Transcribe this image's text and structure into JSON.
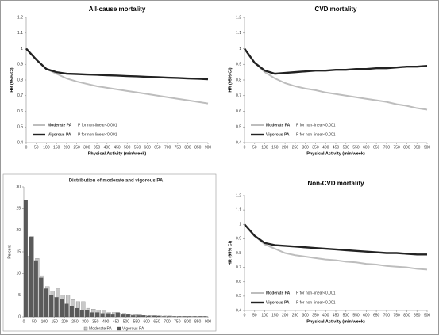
{
  "chart_data": [
    {
      "type": "line",
      "title": "All-cause mortality",
      "ylabel": "HR (95% CI)",
      "xlabel": "Physical Activity (min/week)",
      "x": [
        0,
        50,
        100,
        150,
        200,
        250,
        300,
        350,
        400,
        450,
        500,
        550,
        600,
        650,
        700,
        750,
        800,
        850,
        900
      ],
      "series": [
        {
          "name": "Moderate PA",
          "color": "#bdbdbd",
          "values": [
            1.0,
            0.93,
            0.87,
            0.84,
            0.81,
            0.79,
            0.775,
            0.76,
            0.75,
            0.74,
            0.73,
            0.72,
            0.71,
            0.7,
            0.69,
            0.68,
            0.67,
            0.66,
            0.65
          ]
        },
        {
          "name": "Vigorous PA",
          "color": "#222222",
          "values": [
            1.0,
            0.93,
            0.87,
            0.85,
            0.84,
            0.838,
            0.835,
            0.833,
            0.83,
            0.828,
            0.825,
            0.823,
            0.82,
            0.818,
            0.815,
            0.813,
            0.81,
            0.808,
            0.805
          ]
        }
      ],
      "annotations": [
        "P for non-linear<0.001",
        "P for non-linear<0.001"
      ],
      "xlim": [
        0,
        900
      ],
      "xticks": [
        0,
        50,
        100,
        150,
        200,
        250,
        300,
        350,
        400,
        450,
        500,
        550,
        600,
        650,
        700,
        750,
        800,
        850,
        900
      ],
      "ylim": [
        0.4,
        1.2
      ],
      "yticks": [
        0.4,
        0.5,
        0.6,
        0.7,
        0.8,
        0.9,
        1,
        1.1,
        1.2
      ],
      "legend": "lower left"
    },
    {
      "type": "line",
      "title": "CVD mortality",
      "ylabel": "HR (95% CI)",
      "xlabel": "Physical Activity (min/week)",
      "x": [
        0,
        50,
        100,
        150,
        200,
        250,
        300,
        350,
        400,
        450,
        500,
        550,
        600,
        650,
        700,
        750,
        800,
        850,
        900
      ],
      "series": [
        {
          "name": "Moderate PA",
          "color": "#bdbdbd",
          "values": [
            1.0,
            0.91,
            0.85,
            0.81,
            0.78,
            0.76,
            0.745,
            0.735,
            0.72,
            0.71,
            0.7,
            0.69,
            0.68,
            0.67,
            0.66,
            0.645,
            0.635,
            0.62,
            0.61
          ]
        },
        {
          "name": "Vigorous PA",
          "color": "#222222",
          "values": [
            1.0,
            0.91,
            0.86,
            0.84,
            0.845,
            0.85,
            0.855,
            0.86,
            0.86,
            0.865,
            0.865,
            0.87,
            0.87,
            0.875,
            0.875,
            0.88,
            0.885,
            0.885,
            0.89
          ]
        }
      ],
      "annotations": [
        "P for non-linear<0.001",
        "P for non-linear<0.001"
      ],
      "xlim": [
        0,
        900
      ],
      "xticks": [
        0,
        50,
        100,
        150,
        200,
        250,
        300,
        350,
        400,
        450,
        500,
        550,
        600,
        650,
        700,
        750,
        800,
        850,
        900
      ],
      "ylim": [
        0.4,
        1.2
      ],
      "yticks": [
        0.4,
        0.5,
        0.6,
        0.7,
        0.8,
        0.9,
        1,
        1.1,
        1.2
      ],
      "legend": "lower left"
    },
    {
      "type": "histogram",
      "title": "Distribution of moderate and vigorous PA",
      "ylabel": "Percent",
      "bins": [
        0,
        25,
        50,
        75,
        100,
        125,
        150,
        175,
        200,
        225,
        250,
        275,
        300,
        325,
        350,
        375,
        400,
        425,
        450,
        475,
        500,
        525,
        550,
        575,
        600,
        625,
        650,
        675,
        700,
        725,
        750,
        775,
        800,
        825,
        850,
        875,
        900
      ],
      "series": [
        {
          "name": "Moderate PA",
          "color": "#c8c8c8",
          "values": [
            14,
            18.5,
            13.5,
            9.5,
            7,
            6,
            6.5,
            5,
            5,
            4,
            3.5,
            3.5,
            2,
            1.8,
            1.5,
            1.5,
            1,
            1,
            0.8,
            0.8,
            0.5,
            0.5,
            0.5,
            0.3,
            0.3,
            0.3,
            0.2,
            0.2,
            0.2,
            0.1,
            0.1,
            0.1,
            0.1,
            0.1,
            0.1,
            0.1
          ]
        },
        {
          "name": "Vigorous PA",
          "color": "#5a5a5a",
          "values": [
            27,
            18.5,
            13,
            9,
            6.5,
            5,
            4.5,
            4,
            3,
            2.5,
            2,
            1.5,
            1.5,
            1,
            1,
            0.8,
            0.8,
            0.5,
            1,
            0.5,
            0.5,
            0.3,
            0.3,
            0.3,
            0.2,
            0.2,
            0.2,
            0.1,
            0.1,
            0.1,
            0.1,
            0.1,
            0.1,
            0.1,
            0.1,
            0.1
          ]
        }
      ],
      "xlim": [
        0,
        900
      ],
      "xticks": [
        0,
        50,
        100,
        150,
        200,
        250,
        300,
        350,
        400,
        450,
        500,
        550,
        600,
        650,
        700,
        750,
        800,
        850,
        900
      ],
      "ylim": [
        0,
        30
      ],
      "yticks": [
        0,
        5,
        10,
        15,
        20,
        25,
        30
      ],
      "legend": "bottom"
    },
    {
      "type": "line",
      "title": "Non-CVD mortality",
      "ylabel": "HR (95% CI)",
      "xlabel": "Physical Activity (min/week)",
      "x": [
        0,
        50,
        100,
        150,
        200,
        250,
        300,
        350,
        400,
        450,
        500,
        550,
        600,
        650,
        700,
        750,
        800,
        850,
        900
      ],
      "series": [
        {
          "name": "Moderate PA",
          "color": "#bdbdbd",
          "values": [
            1.0,
            0.92,
            0.86,
            0.83,
            0.8,
            0.785,
            0.775,
            0.765,
            0.755,
            0.75,
            0.74,
            0.735,
            0.725,
            0.72,
            0.71,
            0.705,
            0.7,
            0.69,
            0.685
          ]
        },
        {
          "name": "Vigorous PA",
          "color": "#222222",
          "values": [
            1.0,
            0.92,
            0.87,
            0.855,
            0.85,
            0.845,
            0.84,
            0.835,
            0.83,
            0.825,
            0.82,
            0.815,
            0.81,
            0.805,
            0.8,
            0.8,
            0.795,
            0.79,
            0.79
          ]
        }
      ],
      "annotations": [
        "P for non-linear<0.001",
        "P for non-linear<0.001"
      ],
      "xlim": [
        0,
        900
      ],
      "xticks": [
        0,
        50,
        100,
        150,
        200,
        250,
        300,
        350,
        400,
        450,
        500,
        550,
        600,
        650,
        700,
        750,
        800,
        850,
        900
      ],
      "ylim": [
        0.4,
        1.2
      ],
      "yticks": [
        0.4,
        0.5,
        0.6,
        0.7,
        0.8,
        0.9,
        1,
        1.1,
        1.2
      ],
      "legend": "lower left"
    }
  ]
}
